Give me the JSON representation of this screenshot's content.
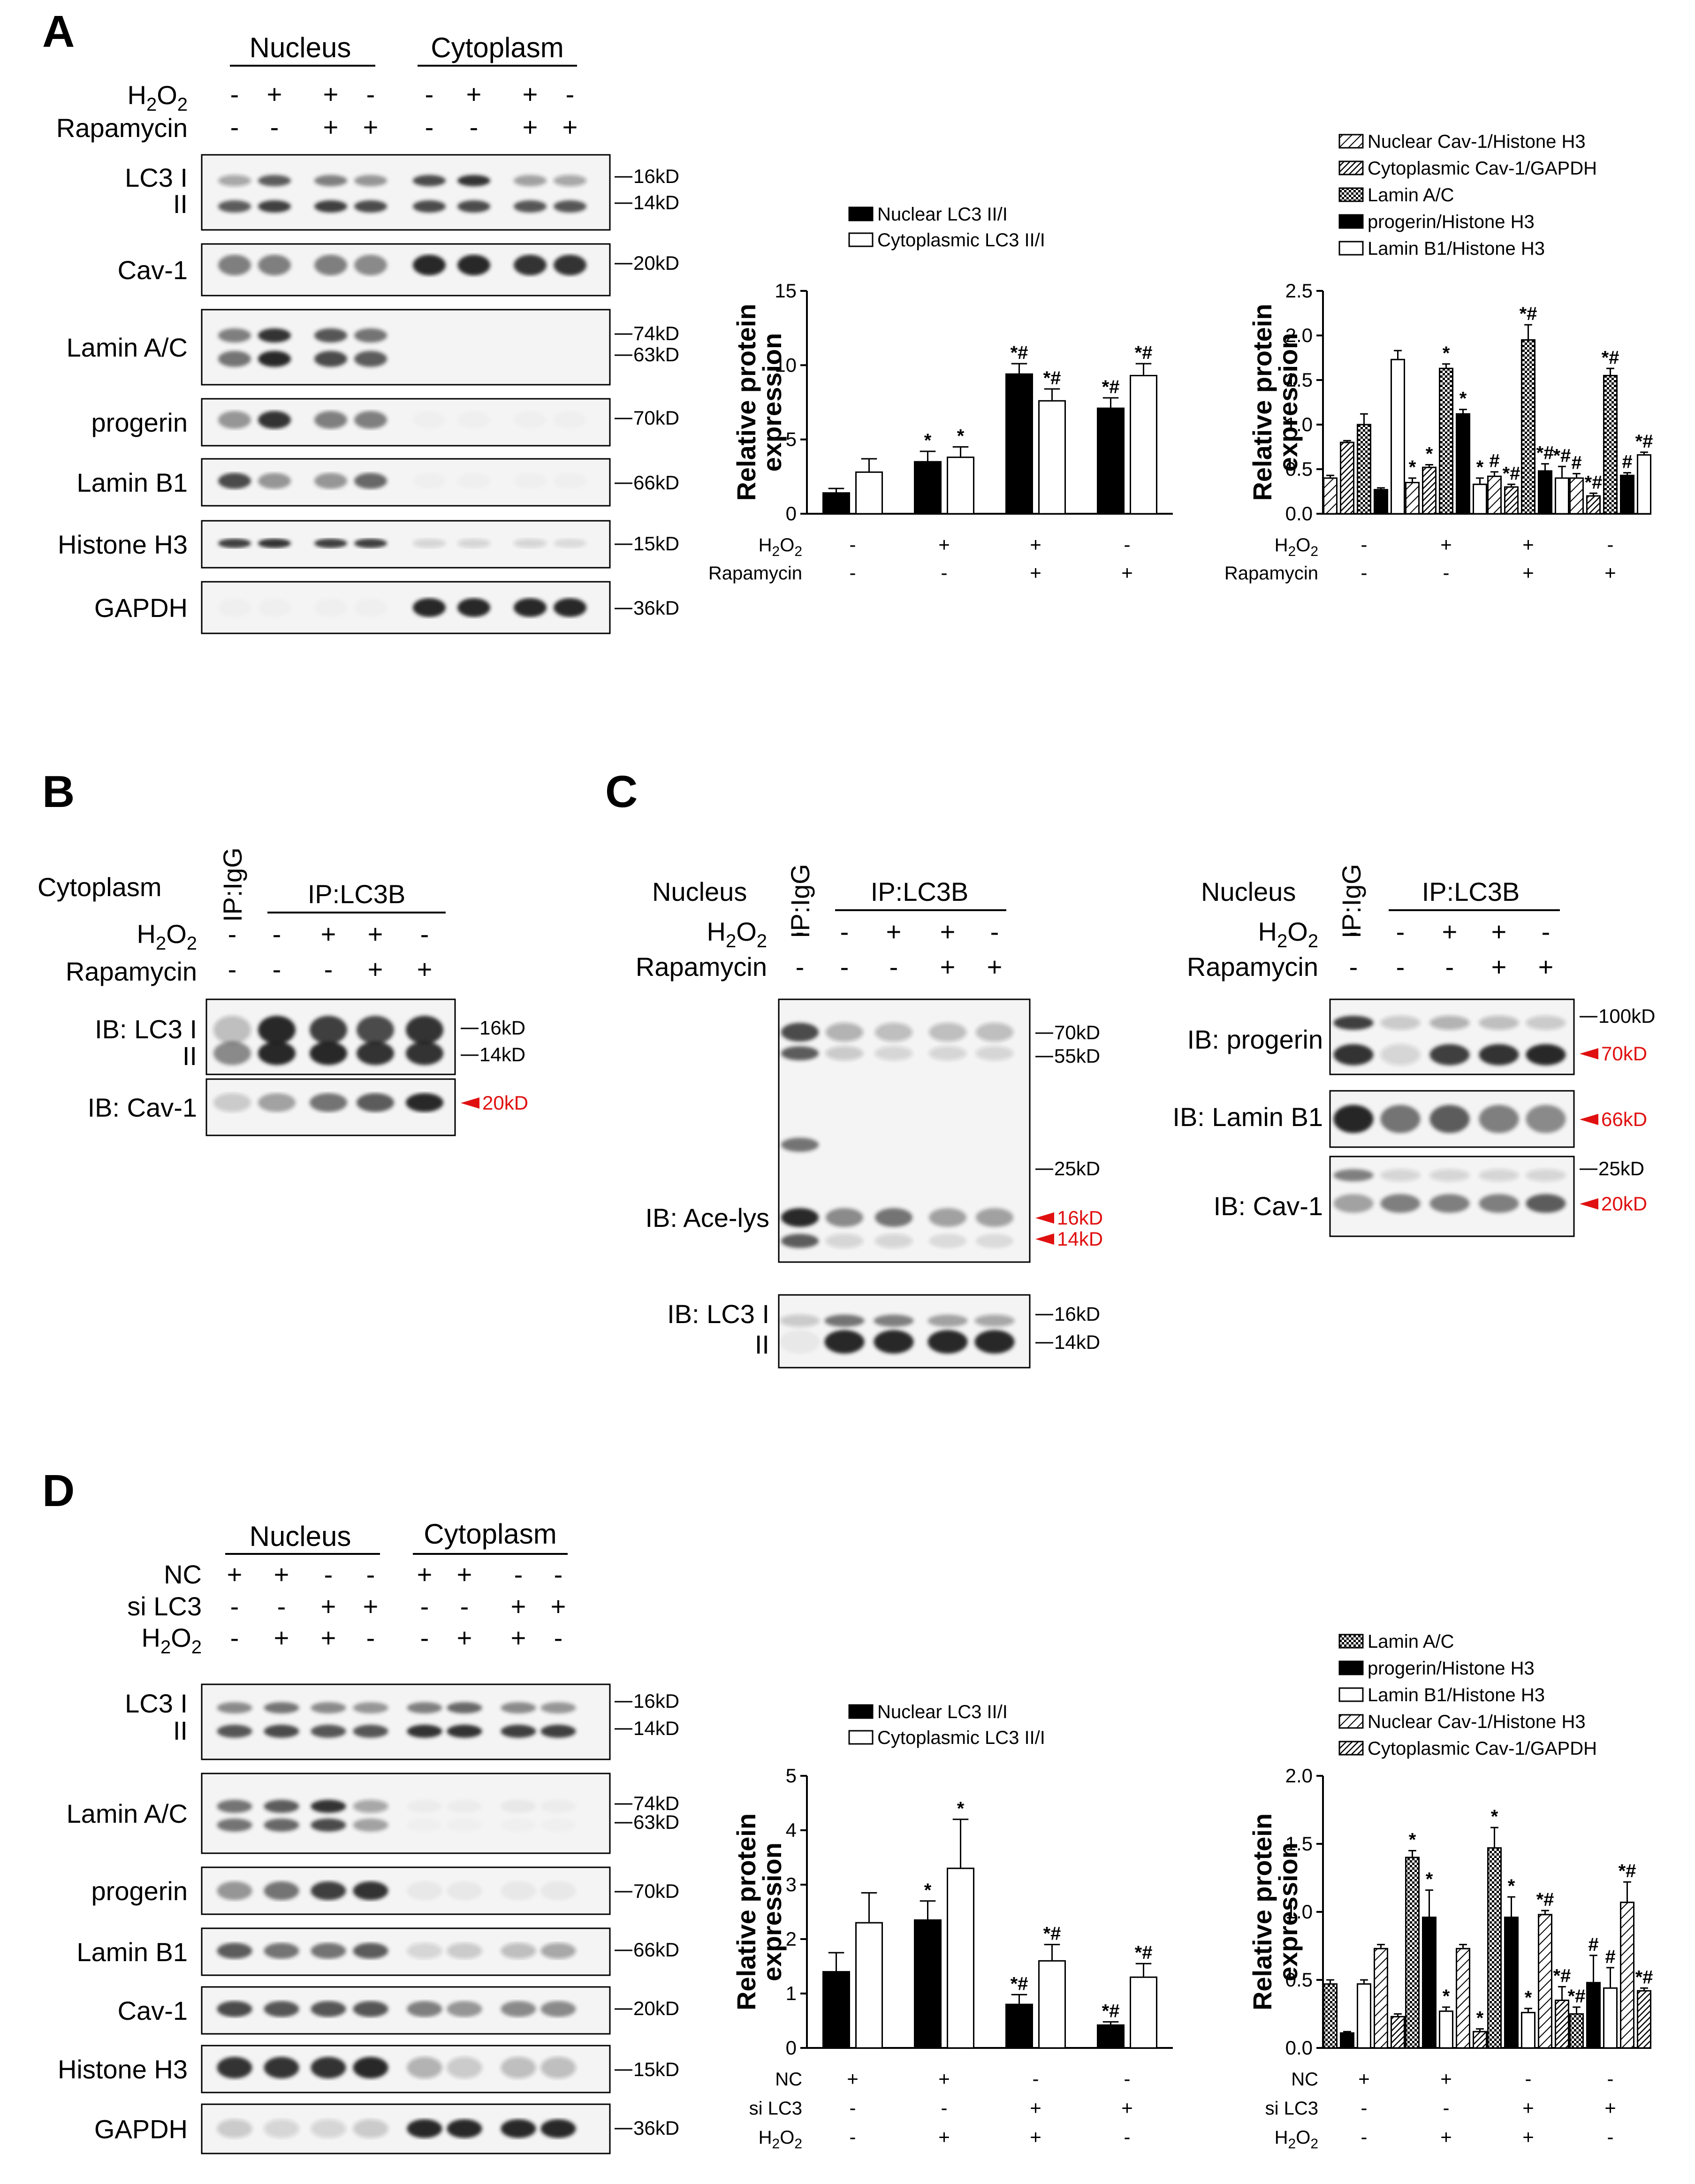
{
  "colors": {
    "blot_band": "#202020",
    "blot_bg": "#f4f4f4",
    "marker_red": "#e01010",
    "bar_black": "#000000",
    "bar_white": "#ffffff"
  },
  "panel_a": {
    "letter": "A",
    "groups": [
      "Nucleus",
      "Cytoplasm"
    ],
    "treatments": [
      {
        "name": "H2O2",
        "base": "H",
        "sub": "2",
        "tail": "O",
        "sub2": "2",
        "symbols": [
          "-",
          "+",
          "+",
          "-",
          "-",
          "+",
          "+",
          "-"
        ]
      },
      {
        "name": "Rapamycin",
        "symbols": [
          "-",
          "-",
          "+",
          "+",
          "-",
          "-",
          "+",
          "+"
        ]
      }
    ],
    "blots": [
      {
        "label": "LC3 I",
        "label2": "II",
        "markers": [
          "16kD",
          "14kD"
        ]
      },
      {
        "label": "Cav-1",
        "markers": [
          "20kD"
        ]
      },
      {
        "label": "Lamin A/C",
        "markers": [
          "74kD",
          "63kD"
        ]
      },
      {
        "label": "progerin",
        "markers": [
          "70kD"
        ]
      },
      {
        "label": "Lamin B1",
        "markers": [
          "66kD"
        ]
      },
      {
        "label": "Histone H3",
        "markers": [
          "15kD"
        ]
      },
      {
        "label": "GAPDH",
        "markers": [
          "36kD"
        ]
      }
    ]
  },
  "panel_b": {
    "letter": "B",
    "fraction": "Cytoplasm",
    "ip_igg": "IP:IgG",
    "ip_lc3b": "IP:LC3B",
    "treatments": [
      {
        "name": "H2O2",
        "symbols": [
          "-",
          "-",
          "+",
          "+",
          "-"
        ]
      },
      {
        "name": "Rapamycin",
        "symbols": [
          "-",
          "-",
          "-",
          "+",
          "+"
        ]
      }
    ],
    "blots": [
      {
        "label": "IB: LC3 I",
        "label2": "II",
        "markers": [
          "16kD",
          "14kD"
        ]
      },
      {
        "label": "IB: Cav-1",
        "markers": [
          "20kD"
        ]
      }
    ]
  },
  "panel_c": {
    "letter": "C",
    "fraction": "Nucleus",
    "ip_igg": "IP:IgG",
    "ip_lc3b": "IP:LC3B",
    "treatments": [
      {
        "name": "H2O2",
        "symbols": [
          "-",
          "-",
          "+",
          "+",
          "-"
        ]
      },
      {
        "name": "Rapamycin",
        "symbols": [
          "-",
          "-",
          "-",
          "+",
          "+"
        ]
      }
    ],
    "left_blots": [
      {
        "label": "IB: Ace-lys",
        "markers": [
          "70kD",
          "55kD",
          "25kD",
          "16kD",
          "14kD"
        ]
      },
      {
        "label": "IB: LC3 I",
        "label2": "II",
        "markers": [
          "16kD",
          "14kD"
        ]
      }
    ],
    "right_blots": [
      {
        "label": "IB: progerin",
        "markers": [
          "100kD",
          "70kD"
        ]
      },
      {
        "label": "IB: Lamin B1",
        "markers": [
          "66kD"
        ]
      },
      {
        "label": "IB: Cav-1",
        "markers": [
          "25kD",
          "20kD"
        ]
      }
    ]
  },
  "panel_d": {
    "letter": "D",
    "groups": [
      "Nucleus",
      "Cytoplasm"
    ],
    "treatments": [
      {
        "name": "NC",
        "symbols": [
          "+",
          "+",
          "-",
          "-",
          "+",
          "+",
          "-",
          "-"
        ]
      },
      {
        "name": "si LC3",
        "symbols": [
          "-",
          "-",
          "+",
          "+",
          "-",
          "-",
          "+",
          "+"
        ]
      },
      {
        "name": "H2O2",
        "symbols": [
          "-",
          "+",
          "+",
          "-",
          "-",
          "+",
          "+",
          "-"
        ]
      }
    ],
    "blots": [
      {
        "label": "LC3 I",
        "label2": "II",
        "markers": [
          "16kD",
          "14kD"
        ]
      },
      {
        "label": "Lamin A/C",
        "markers": [
          "74kD",
          "63kD"
        ]
      },
      {
        "label": "progerin",
        "markers": [
          "70kD"
        ]
      },
      {
        "label": "Lamin B1",
        "markers": [
          "66kD"
        ]
      },
      {
        "label": "Cav-1",
        "markers": [
          "20kD"
        ]
      },
      {
        "label": "Histone H3",
        "markers": [
          "15kD"
        ]
      },
      {
        "label": "GAPDH",
        "markers": [
          "36kD"
        ]
      }
    ]
  },
  "chart_data": [
    {
      "id": "A-LC3",
      "type": "bar",
      "ylabel": "Relative protein expression",
      "ylim": [
        0,
        15
      ],
      "yticks": [
        0,
        5,
        10,
        15
      ],
      "conditions": [
        {
          "name": "H2O2",
          "symbols": [
            "-",
            "+",
            "+",
            "-"
          ]
        },
        {
          "name": "Rapamycin",
          "symbols": [
            "-",
            "-",
            "+",
            "+"
          ]
        }
      ],
      "series": [
        {
          "name": "Nuclear LC3 II/I",
          "fill": "black",
          "values": [
            1.4,
            3.5,
            9.4,
            7.1
          ],
          "errors": [
            0.3,
            0.7,
            0.7,
            0.7
          ],
          "sig": [
            "",
            "*",
            "*#",
            "*#"
          ]
        },
        {
          "name": "Cytoplasmic LC3 II/I",
          "fill": "white",
          "values": [
            2.8,
            3.8,
            7.6,
            9.3
          ],
          "errors": [
            0.9,
            0.7,
            0.8,
            0.8
          ],
          "sig": [
            "",
            "*",
            "*#",
            "*#"
          ]
        }
      ],
      "legend": "top"
    },
    {
      "id": "A-Cav1",
      "type": "bar",
      "ylabel": "Relative protein expression",
      "ylim": [
        0,
        2.5
      ],
      "yticks": [
        0.0,
        0.5,
        1.0,
        1.5,
        2.0,
        2.5
      ],
      "conditions": [
        {
          "name": "H2O2",
          "symbols": [
            "-",
            "+",
            "+",
            "-"
          ]
        },
        {
          "name": "Rapamycin",
          "symbols": [
            "-",
            "-",
            "+",
            "+"
          ]
        }
      ],
      "series": [
        {
          "name": "Nuclear Cav-1/Histone H3",
          "fill": "hatch",
          "values": [
            0.4,
            0.35,
            0.42,
            0.4
          ],
          "errors": [
            0.03,
            0.05,
            0.05,
            0.05
          ],
          "sig": [
            "",
            "*",
            "#",
            "#"
          ]
        },
        {
          "name": "Cytoplasmic Cav-1/GAPDH",
          "fill": "dense-hatch",
          "values": [
            0.8,
            0.52,
            0.3,
            0.2
          ],
          "errors": [
            0.02,
            0.03,
            0.03,
            0.03
          ],
          "sig": [
            "",
            "*",
            "*#",
            "*#"
          ]
        },
        {
          "name": "Lamin A/C",
          "fill": "checker",
          "values": [
            1.0,
            1.63,
            1.95,
            1.55
          ],
          "errors": [
            0.12,
            0.05,
            0.17,
            0.08
          ],
          "sig": [
            "",
            "*",
            "*#",
            "*#"
          ]
        },
        {
          "name": "progerin/Histone H3",
          "fill": "black",
          "values": [
            0.27,
            1.12,
            0.48,
            0.43
          ],
          "errors": [
            0.02,
            0.05,
            0.08,
            0.03
          ],
          "sig": [
            "",
            "*",
            "*#",
            "#"
          ]
        },
        {
          "name": "Lamin B1/Histone H3",
          "fill": "white",
          "values": [
            1.73,
            0.33,
            0.4,
            0.66
          ],
          "errors": [
            0.1,
            0.07,
            0.13,
            0.03
          ],
          "sig": [
            "",
            "*",
            "*#",
            "*#"
          ]
        }
      ],
      "legend": "top"
    },
    {
      "id": "D-LC3",
      "type": "bar",
      "ylabel": "Relative protein expression",
      "ylim": [
        0,
        5
      ],
      "yticks": [
        0,
        1,
        2,
        3,
        4,
        5
      ],
      "conditions": [
        {
          "name": "NC",
          "symbols": [
            "+",
            "+",
            "-",
            "-"
          ]
        },
        {
          "name": "si LC3",
          "symbols": [
            "-",
            "-",
            "+",
            "+"
          ]
        },
        {
          "name": "H2O2",
          "symbols": [
            "-",
            "+",
            "+",
            "-"
          ]
        }
      ],
      "series": [
        {
          "name": "Nuclear LC3 II/I",
          "fill": "black",
          "values": [
            1.4,
            2.35,
            0.8,
            0.42
          ],
          "errors": [
            0.35,
            0.35,
            0.18,
            0.06
          ],
          "sig": [
            "",
            "*",
            "*#",
            "*#"
          ]
        },
        {
          "name": "Cytoplasmic LC3 II/I",
          "fill": "white",
          "values": [
            2.3,
            3.3,
            1.6,
            1.3
          ],
          "errors": [
            0.55,
            0.9,
            0.3,
            0.25
          ],
          "sig": [
            "",
            "*",
            "*#",
            "*#"
          ]
        }
      ],
      "legend": "top"
    },
    {
      "id": "D-Cav1",
      "type": "bar",
      "ylabel": "Relative protein expression",
      "ylim": [
        0,
        2.0
      ],
      "yticks": [
        0.0,
        0.5,
        1.0,
        1.5,
        2.0
      ],
      "conditions": [
        {
          "name": "NC",
          "symbols": [
            "+",
            "+",
            "-",
            "-"
          ]
        },
        {
          "name": "si LC3",
          "symbols": [
            "-",
            "-",
            "+",
            "+"
          ]
        },
        {
          "name": "H2O2",
          "symbols": [
            "-",
            "+",
            "+",
            "-"
          ]
        }
      ],
      "series": [
        {
          "name": "Lamin A/C",
          "fill": "checker",
          "values": [
            0.47,
            1.4,
            1.47,
            0.25
          ],
          "errors": [
            0.03,
            0.05,
            0.15,
            0.05
          ],
          "sig": [
            "",
            "*",
            "*",
            "*#"
          ]
        },
        {
          "name": "progerin/Histone H3",
          "fill": "black",
          "values": [
            0.11,
            0.96,
            0.96,
            0.48
          ],
          "errors": [
            0.01,
            0.2,
            0.15,
            0.2
          ],
          "sig": [
            "",
            "*",
            "*",
            "#"
          ]
        },
        {
          "name": "Lamin B1/Histone H3",
          "fill": "white",
          "values": [
            0.47,
            0.27,
            0.26,
            0.44
          ],
          "errors": [
            0.03,
            0.03,
            0.03,
            0.15
          ],
          "sig": [
            "",
            "*",
            "*",
            "#"
          ]
        },
        {
          "name": "Nuclear Cav-1/Histone H3",
          "fill": "hatch",
          "values": [
            0.73,
            0.73,
            0.98,
            1.07
          ],
          "errors": [
            0.03,
            0.03,
            0.03,
            0.15
          ],
          "sig": [
            "",
            "",
            "*#",
            "*#"
          ]
        },
        {
          "name": "Cytoplasmic Cav-1/GAPDH",
          "fill": "dense-hatch",
          "values": [
            0.23,
            0.12,
            0.35,
            0.42
          ],
          "errors": [
            0.02,
            0.02,
            0.1,
            0.02
          ],
          "sig": [
            "",
            "*",
            "*#",
            "*#"
          ]
        }
      ],
      "legend": "top"
    }
  ]
}
